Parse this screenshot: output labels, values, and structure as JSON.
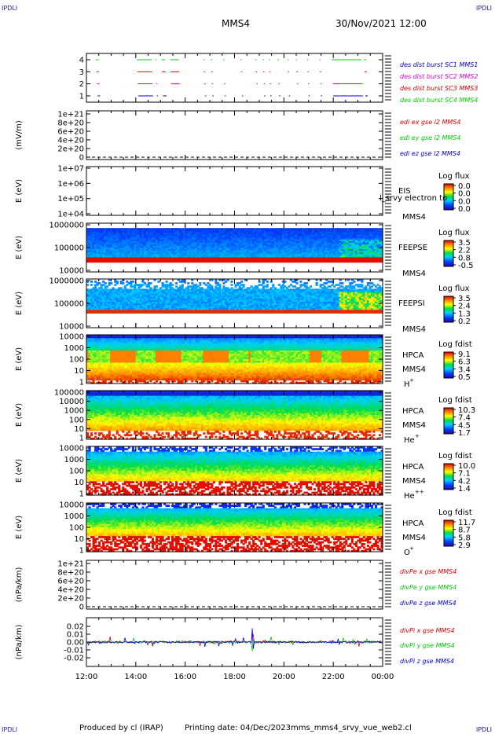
{
  "corner_label": "IPDLI",
  "header": {
    "spacecraft": "MMS4",
    "datetime": "30/Nov/2021 12:00"
  },
  "footer": {
    "produced_by": "Produced by cl (IRAP)",
    "printing_date": "Printing date: 04/Dec/2023",
    "filename": "mms_mms4_srvy_vue_web2.cl"
  },
  "x_axis": {
    "ticks": [
      "12:00",
      "14:00",
      "16:00",
      "18:00",
      "20:00",
      "22:00",
      "00:00"
    ],
    "range_hours": [
      12,
      24
    ]
  },
  "chart_data": [
    {
      "type": "scatter",
      "id": "burst",
      "y_ticks": [
        "4",
        "3",
        "2",
        "1"
      ],
      "series": [
        {
          "name": "des dist burst SC1 MMS1",
          "color": "#0000dd",
          "y": 1
        },
        {
          "name": "des dist burst SC2 MMS2",
          "color": "#dd00dd",
          "y": 2
        },
        {
          "name": "des dist burst SC3 MMS3",
          "color": "#dd0000",
          "y": 3
        },
        {
          "name": "des dist burst SC4 MMS4",
          "color": "#00cc00",
          "y": 4
        }
      ],
      "segments_hours": [
        [
          12.45,
          12.55
        ],
        [
          14.1,
          14.7
        ],
        [
          14.85,
          14.9
        ],
        [
          15.1,
          15.25
        ],
        [
          15.45,
          15.8
        ],
        [
          16.8,
          16.85
        ],
        [
          17.1,
          17.15
        ],
        [
          17.6,
          17.65
        ],
        [
          18.3,
          18.35
        ],
        [
          18.9,
          18.95
        ],
        [
          19.2,
          19.25
        ],
        [
          19.45,
          19.5
        ],
        [
          19.8,
          19.85
        ],
        [
          20.2,
          20.25
        ],
        [
          20.55,
          20.6
        ],
        [
          21.0,
          21.05
        ],
        [
          21.5,
          21.55
        ],
        [
          22.0,
          23.2
        ],
        [
          23.3,
          23.4
        ]
      ]
    },
    {
      "type": "line",
      "id": "edi-e",
      "ylabel": "(mV/m)",
      "y_ticks": [
        "1e+21",
        "8e+20",
        "6e+20",
        "4e+20",
        "2e+20",
        "0"
      ],
      "series": [
        {
          "name": "edi ex gse l2 MMS4",
          "color": "#dd0000"
        },
        {
          "name": "edi ey gse l2 MMS4",
          "color": "#00cc00"
        },
        {
          "name": "edi ez gse l2 MMS4",
          "color": "#0000dd"
        }
      ]
    },
    {
      "type": "heatmap",
      "id": "eis",
      "ylabel": "E (eV)",
      "y_ticks": [
        "1e+07",
        "1e+06",
        "1e+05",
        "1e+04"
      ],
      "instrument": "EIS",
      "sc": "MMS4",
      "overlay_text": "l_srvy electron to",
      "colorbar": {
        "title": "Log flux",
        "ticks": [
          "0.0",
          "0.0",
          "0.0",
          "0.0"
        ]
      }
    },
    {
      "type": "heatmap",
      "id": "feeps-e",
      "ylabel": "E (eV)",
      "y_ticks": [
        "1000000",
        "100000",
        "10000"
      ],
      "instrument": "FEEPSE",
      "sc": "MMS4",
      "colorbar": {
        "title": "Log flux",
        "ticks": [
          "3.5",
          "2.2",
          "0.8",
          "-0.5"
        ]
      }
    },
    {
      "type": "heatmap",
      "id": "feeps-i",
      "ylabel": "E (eV)",
      "y_ticks": [
        "1000000",
        "100000",
        "10000"
      ],
      "instrument": "FEEPSI",
      "sc": "MMS4",
      "colorbar": {
        "title": "Log flux",
        "ticks": [
          "3.5",
          "2.4",
          "1.3",
          "0.2"
        ]
      }
    },
    {
      "type": "heatmap",
      "id": "hpca-h",
      "ylabel": "E (eV)",
      "y_ticks": [
        "10000",
        "1000",
        "100",
        "10",
        "1"
      ],
      "instrument": "HPCA",
      "sc": "MMS4",
      "species": "H",
      "species_sup": "+",
      "colorbar": {
        "title": "Log fdist",
        "ticks": [
          "9.1",
          "6.3",
          "3.4",
          "0.5"
        ]
      }
    },
    {
      "type": "heatmap",
      "id": "hpca-he",
      "ylabel": "E (eV)",
      "y_ticks": [
        "100000",
        "10000",
        "1000",
        "100",
        "10",
        "1"
      ],
      "instrument": "HPCA",
      "sc": "MMS4",
      "species": "He",
      "species_sup": "+",
      "colorbar": {
        "title": "Log fdist",
        "ticks": [
          "10.3",
          "7.4",
          "4.5",
          "1.7"
        ]
      }
    },
    {
      "type": "heatmap",
      "id": "hpca-he2",
      "ylabel": "E (eV)",
      "y_ticks": [
        "10000",
        "1000",
        "100",
        "10",
        "1"
      ],
      "instrument": "HPCA",
      "sc": "MMS4",
      "species": "He",
      "species_sup": "++",
      "colorbar": {
        "title": "Log fdist",
        "ticks": [
          "10.0",
          "7.1",
          "4.2",
          "1.4"
        ]
      }
    },
    {
      "type": "heatmap",
      "id": "hpca-o",
      "ylabel": "E (eV)",
      "y_ticks": [
        "10000",
        "1000",
        "100",
        "10",
        "1"
      ],
      "instrument": "HPCA",
      "sc": "MMS4",
      "species": "O",
      "species_sup": "+",
      "colorbar": {
        "title": "Log fdist",
        "ticks": [
          "11.7",
          "8.7",
          "5.8",
          "2.9"
        ]
      }
    },
    {
      "type": "line",
      "id": "divpe",
      "ylabel": "(nPa/km)",
      "y_ticks": [
        "1e+21",
        "8e+20",
        "6e+20",
        "4e+20",
        "2e+20",
        "0"
      ],
      "series": [
        {
          "name": "divPe x gse MMS4",
          "color": "#dd0000"
        },
        {
          "name": "divPe y gse MMS4",
          "color": "#00cc00"
        },
        {
          "name": "divPe z gse MMS4",
          "color": "#0000dd"
        }
      ]
    },
    {
      "type": "line",
      "id": "divpi",
      "ylabel": "(nPa/km)",
      "y_ticks": [
        "0.02",
        "0.01",
        "0.00",
        "-0.01",
        "-0.02"
      ],
      "ylim": [
        -0.03,
        0.03
      ],
      "series": [
        {
          "name": "divPi x gse MMS4",
          "color": "#dd0000"
        },
        {
          "name": "divPi y gse MMS4",
          "color": "#00cc00"
        },
        {
          "name": "divPi z gse MMS4",
          "color": "#0000dd"
        }
      ]
    }
  ]
}
